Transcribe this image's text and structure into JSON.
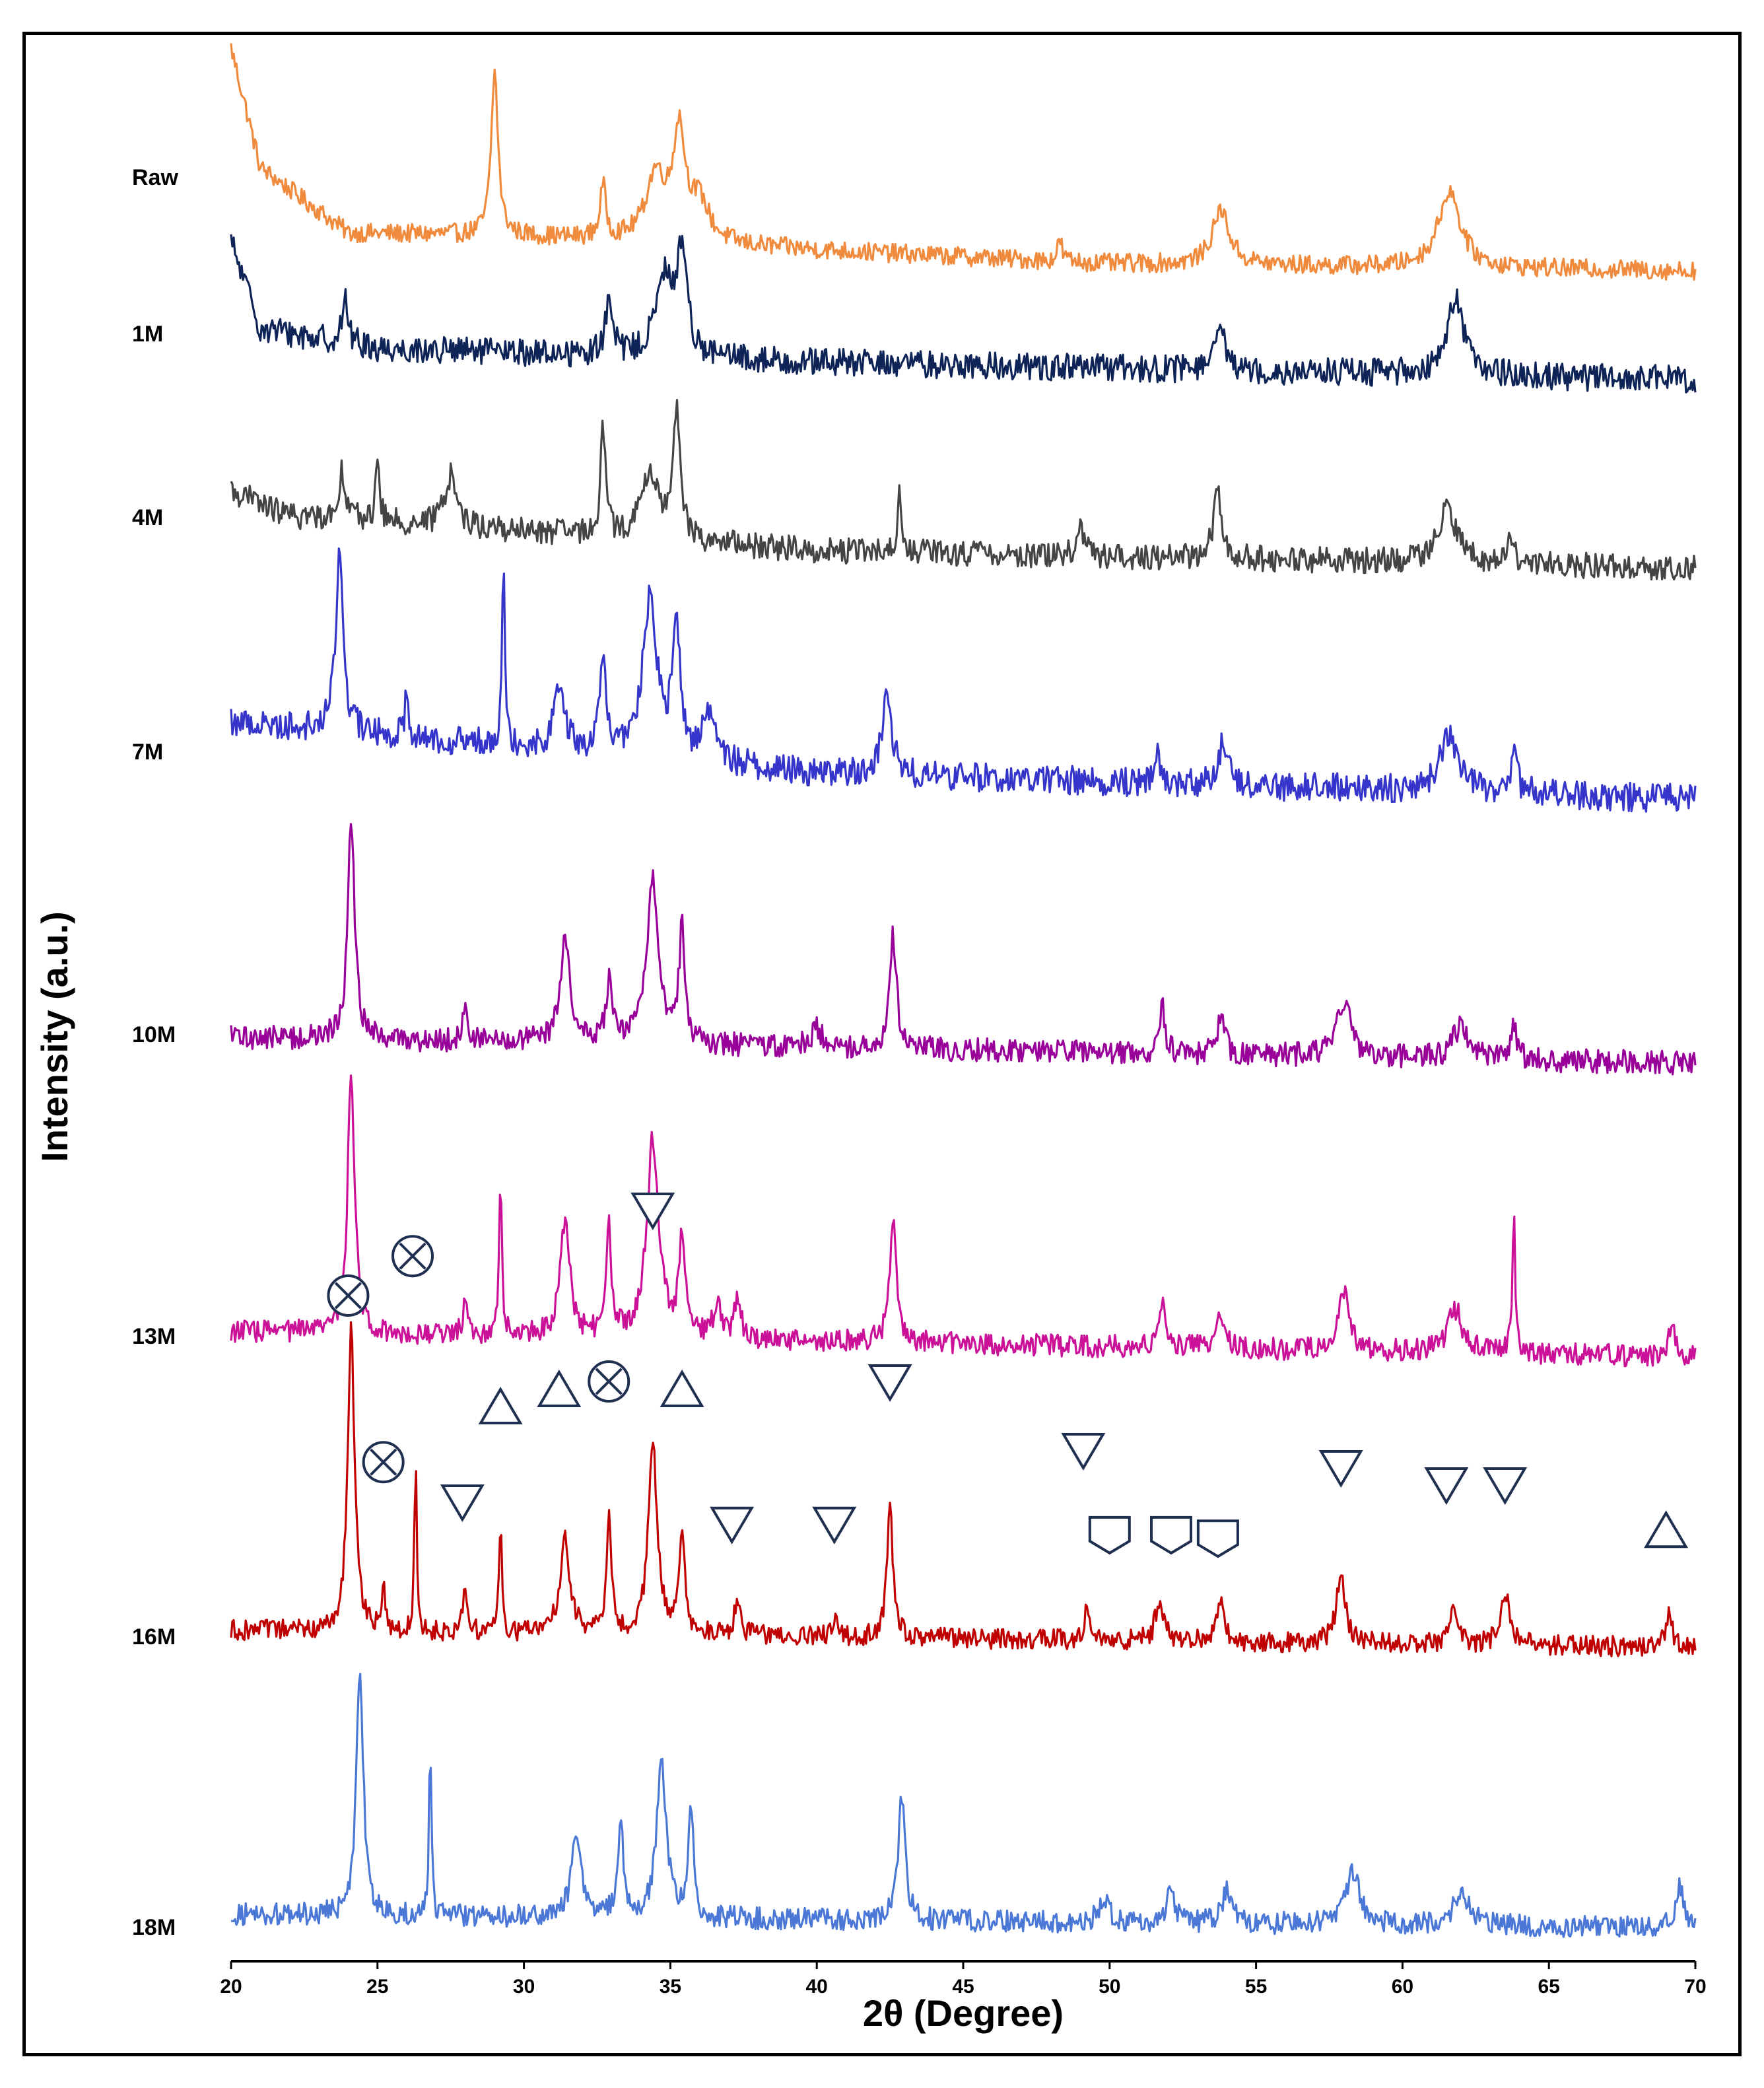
{
  "chart_data": {
    "type": "line",
    "title": "",
    "xlabel": "2θ (Degree)",
    "ylabel": "Intensity (a.u.)",
    "xlim": [
      20,
      70
    ],
    "xticks": [
      20,
      25,
      30,
      35,
      40,
      45,
      50,
      55,
      60,
      65,
      70
    ],
    "tick_labels": [
      "20",
      "25",
      "30",
      "35",
      "40",
      "45",
      "50",
      "55",
      "60",
      "65",
      "70"
    ],
    "grid": false,
    "legend": "series labels at left of each trace",
    "series": [
      {
        "name": "Raw",
        "color": "#f08a3c",
        "baseline": 0.0,
        "noise": 0.055,
        "bg": [
          [
            20,
            1.3
          ],
          [
            21,
            0.6
          ],
          [
            24,
            0.22
          ],
          [
            30,
            0.2
          ],
          [
            40,
            0.12
          ],
          [
            50,
            0.04
          ],
          [
            70,
            0.0
          ]
        ],
        "peaks": [
          [
            29.0,
            0.95,
            0.14
          ],
          [
            32.7,
            0.3,
            0.12
          ],
          [
            34.5,
            0.38,
            0.4
          ],
          [
            35.3,
            0.62,
            0.25
          ],
          [
            36.0,
            0.22,
            0.4
          ],
          [
            48.3,
            0.12,
            0.1
          ],
          [
            53.8,
            0.32,
            0.35
          ],
          [
            61.6,
            0.45,
            0.45
          ]
        ]
      },
      {
        "name": "1M",
        "color": "#0e2457",
        "baseline": 0.0,
        "noise": 0.08,
        "bg": [
          [
            20,
            0.8
          ],
          [
            21,
            0.3
          ],
          [
            25,
            0.18
          ],
          [
            40,
            0.1
          ],
          [
            70,
            0.0
          ]
        ],
        "peaks": [
          [
            23.9,
            0.25,
            0.12
          ],
          [
            32.9,
            0.3,
            0.15
          ],
          [
            34.8,
            0.45,
            0.35
          ],
          [
            35.4,
            0.6,
            0.2
          ],
          [
            53.8,
            0.2,
            0.25
          ],
          [
            61.8,
            0.45,
            0.35
          ]
        ]
      },
      {
        "name": "4M",
        "color": "#444444",
        "baseline": 0.0,
        "noise": 0.075,
        "bg": [
          [
            20,
            0.45
          ],
          [
            22,
            0.3
          ],
          [
            40,
            0.1
          ],
          [
            70,
            0.0
          ]
        ],
        "peaks": [
          [
            23.8,
            0.28,
            0.15
          ],
          [
            25.0,
            0.35,
            0.08
          ],
          [
            27.5,
            0.3,
            0.25
          ],
          [
            32.7,
            0.65,
            0.1
          ],
          [
            34.3,
            0.38,
            0.35
          ],
          [
            35.2,
            0.75,
            0.15
          ],
          [
            42.8,
            0.35,
            0.07
          ],
          [
            49.0,
            0.2,
            0.12
          ],
          [
            53.7,
            0.38,
            0.18
          ],
          [
            61.5,
            0.3,
            0.4
          ],
          [
            63.7,
            0.18,
            0.12
          ]
        ]
      },
      {
        "name": "7M",
        "color": "#3535cc",
        "baseline": 0.0,
        "noise": 0.085,
        "bg": [
          [
            20,
            0.45
          ],
          [
            40,
            0.15
          ],
          [
            70,
            0.0
          ]
        ],
        "peaks": [
          [
            23.7,
            1.05,
            0.15
          ],
          [
            26.0,
            0.3,
            0.07
          ],
          [
            29.3,
            1.15,
            0.06
          ],
          [
            31.2,
            0.4,
            0.2
          ],
          [
            32.7,
            0.55,
            0.12
          ],
          [
            34.3,
            0.9,
            0.3
          ],
          [
            35.2,
            0.78,
            0.15
          ],
          [
            36.3,
            0.3,
            0.25
          ],
          [
            42.4,
            0.45,
            0.2
          ],
          [
            51.6,
            0.2,
            0.12
          ],
          [
            53.9,
            0.25,
            0.2
          ],
          [
            61.6,
            0.32,
            0.4
          ],
          [
            63.8,
            0.2,
            0.15
          ]
        ]
      },
      {
        "name": "10M",
        "color": "#990099",
        "baseline": 0.0,
        "noise": 0.07,
        "bg": [
          [
            20,
            0.15
          ],
          [
            70,
            0.0
          ]
        ],
        "peaks": [
          [
            24.1,
            1.28,
            0.14
          ],
          [
            28.0,
            0.2,
            0.1
          ],
          [
            31.4,
            0.6,
            0.2
          ],
          [
            32.9,
            0.35,
            0.12
          ],
          [
            34.4,
            0.95,
            0.25
          ],
          [
            35.4,
            0.65,
            0.12
          ],
          [
            40.0,
            0.12,
            0.2
          ],
          [
            42.6,
            0.68,
            0.14
          ],
          [
            51.8,
            0.26,
            0.12
          ],
          [
            53.8,
            0.22,
            0.15
          ],
          [
            58.0,
            0.3,
            0.3
          ],
          [
            62.0,
            0.2,
            0.3
          ],
          [
            63.8,
            0.18,
            0.12
          ]
        ]
      },
      {
        "name": "13M",
        "color": "#cc1199",
        "baseline": 0.0,
        "noise": 0.065,
        "bg": [
          [
            20,
            0.15
          ],
          [
            70,
            0.0
          ]
        ],
        "peaks": [
          [
            24.1,
            1.55,
            0.14
          ],
          [
            28.0,
            0.25,
            0.08
          ],
          [
            29.2,
            0.9,
            0.06
          ],
          [
            31.4,
            0.65,
            0.2
          ],
          [
            32.9,
            0.62,
            0.1
          ],
          [
            34.4,
            1.15,
            0.25
          ],
          [
            35.4,
            0.6,
            0.12
          ],
          [
            36.6,
            0.2,
            0.15
          ],
          [
            37.3,
            0.25,
            0.12
          ],
          [
            42.6,
            0.7,
            0.14
          ],
          [
            51.8,
            0.28,
            0.15
          ],
          [
            53.8,
            0.2,
            0.15
          ],
          [
            58.0,
            0.35,
            0.2
          ],
          [
            61.8,
            0.25,
            0.3
          ],
          [
            63.8,
            0.82,
            0.06
          ],
          [
            69.2,
            0.2,
            0.12
          ]
        ]
      },
      {
        "name": "16M",
        "color": "#c00000",
        "baseline": 0.0,
        "noise": 0.06,
        "bg": [
          [
            20,
            0.1
          ],
          [
            70,
            0.0
          ]
        ],
        "peaks": [
          [
            24.1,
            1.75,
            0.14
          ],
          [
            25.2,
            0.25,
            0.06
          ],
          [
            26.3,
            1.0,
            0.05
          ],
          [
            28.0,
            0.25,
            0.1
          ],
          [
            29.2,
            0.62,
            0.06
          ],
          [
            31.4,
            0.55,
            0.2
          ],
          [
            32.9,
            0.65,
            0.1
          ],
          [
            34.4,
            1.1,
            0.18
          ],
          [
            35.4,
            0.62,
            0.12
          ],
          [
            37.3,
            0.22,
            0.12
          ],
          [
            40.6,
            0.1,
            0.1
          ],
          [
            42.5,
            0.75,
            0.12
          ],
          [
            49.2,
            0.18,
            0.1
          ],
          [
            51.7,
            0.25,
            0.15
          ],
          [
            53.8,
            0.22,
            0.15
          ],
          [
            57.9,
            0.42,
            0.18
          ],
          [
            61.7,
            0.22,
            0.15
          ],
          [
            63.5,
            0.32,
            0.18
          ],
          [
            69.1,
            0.22,
            0.12
          ]
        ]
      },
      {
        "name": "18M",
        "color": "#4b78d6",
        "baseline": 0.0,
        "noise": 0.065,
        "bg": [
          [
            20,
            0.08
          ],
          [
            70,
            0.0
          ]
        ],
        "peaks": [
          [
            24.4,
            1.45,
            0.14
          ],
          [
            26.8,
            1.0,
            0.05
          ],
          [
            31.8,
            0.48,
            0.2
          ],
          [
            33.3,
            0.6,
            0.1
          ],
          [
            34.7,
            0.9,
            0.2
          ],
          [
            35.7,
            0.65,
            0.1
          ],
          [
            42.9,
            0.72,
            0.14
          ],
          [
            49.8,
            0.15,
            0.2
          ],
          [
            52.1,
            0.25,
            0.12
          ],
          [
            54.0,
            0.2,
            0.2
          ],
          [
            58.3,
            0.3,
            0.3
          ],
          [
            62.0,
            0.2,
            0.3
          ],
          [
            69.5,
            0.25,
            0.15
          ]
        ]
      }
    ],
    "annotations": [
      {
        "series": "16M",
        "shape": "crossed-circle",
        "x": 24.0,
        "level": 2.05
      },
      {
        "series": "16M",
        "shape": "crossed-circle",
        "x": 25.2,
        "level": 1.08
      },
      {
        "series": "16M",
        "shape": "crossed-circle",
        "x": 26.2,
        "level": 2.28
      },
      {
        "series": "16M",
        "shape": "down-triangle",
        "x": 27.9,
        "level": 0.85
      },
      {
        "series": "16M",
        "shape": "up-triangle",
        "x": 29.2,
        "level": 1.4
      },
      {
        "series": "16M",
        "shape": "up-triangle",
        "x": 31.2,
        "level": 1.5
      },
      {
        "series": "16M",
        "shape": "crossed-circle",
        "x": 32.9,
        "level": 1.55
      },
      {
        "series": "16M",
        "shape": "down-triangle",
        "x": 34.4,
        "level": 2.55
      },
      {
        "series": "16M",
        "shape": "up-triangle",
        "x": 35.4,
        "level": 1.5
      },
      {
        "series": "16M",
        "shape": "down-triangle",
        "x": 37.1,
        "level": 0.72
      },
      {
        "series": "16M",
        "shape": "down-triangle",
        "x": 40.6,
        "level": 0.72
      },
      {
        "series": "16M",
        "shape": "down-triangle",
        "x": 42.5,
        "level": 1.55
      },
      {
        "series": "16M",
        "shape": "down-triangle",
        "x": 49.1,
        "level": 1.15
      },
      {
        "series": "16M",
        "shape": "pentagon",
        "x": 50.0,
        "level": 0.66
      },
      {
        "series": "16M",
        "shape": "pentagon",
        "x": 52.1,
        "level": 0.66
      },
      {
        "series": "16M",
        "shape": "pentagon",
        "x": 53.7,
        "level": 0.64
      },
      {
        "series": "16M",
        "shape": "down-triangle",
        "x": 57.9,
        "level": 1.05
      },
      {
        "series": "16M",
        "shape": "down-triangle",
        "x": 61.5,
        "level": 0.95
      },
      {
        "series": "16M",
        "shape": "down-triangle",
        "x": 63.5,
        "level": 0.95
      },
      {
        "series": "16M",
        "shape": "up-triangle",
        "x": 69.0,
        "level": 0.68
      }
    ]
  }
}
